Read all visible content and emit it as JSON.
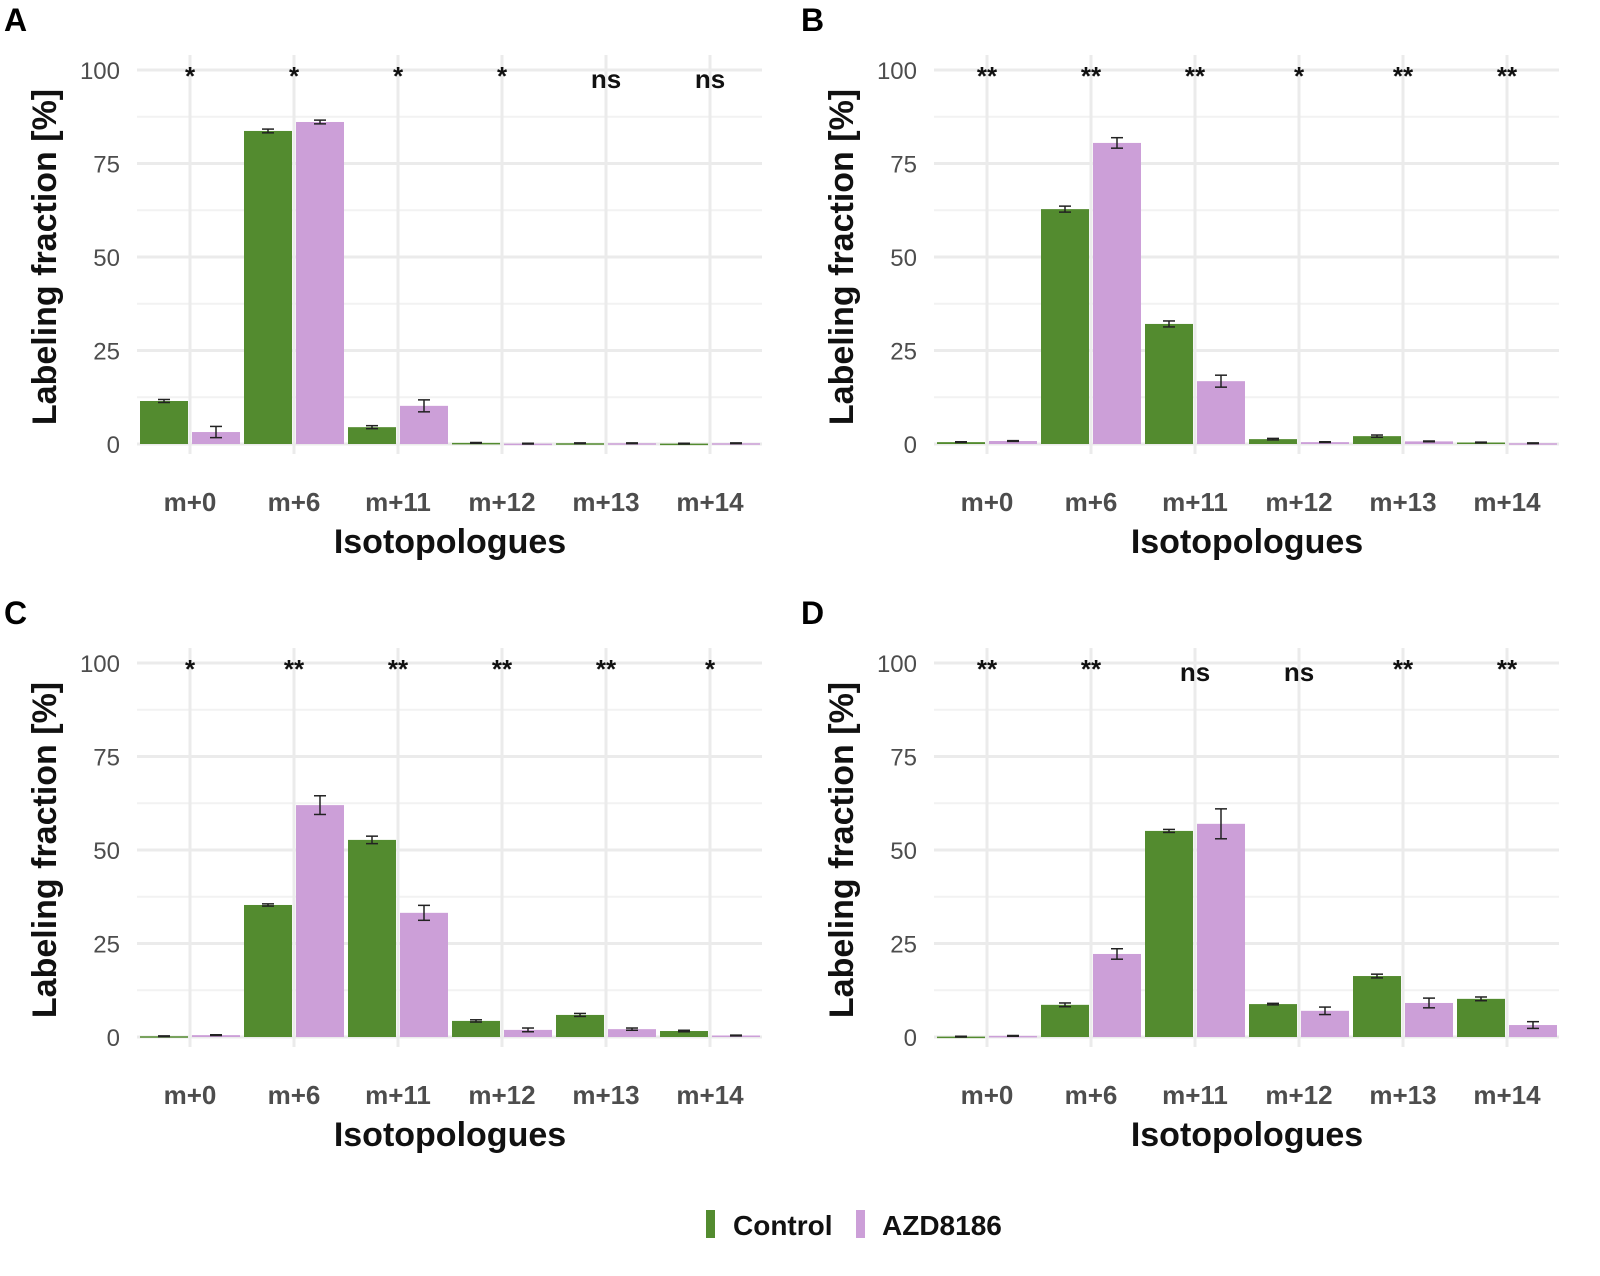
{
  "chart_data": [
    {
      "panel": "A",
      "type": "bar",
      "categories": [
        "m+0",
        "m+6",
        "m+11",
        "m+12",
        "m+13",
        "m+14"
      ],
      "series": [
        {
          "name": "Control",
          "values": [
            11.5,
            83.7,
            4.5,
            0.3,
            0.2,
            0.1
          ],
          "errors": [
            0.4,
            0.5,
            0.4,
            0.1,
            0.1,
            0.1
          ]
        },
        {
          "name": "AZD8186",
          "values": [
            3.2,
            86.1,
            10.2,
            0.1,
            0.2,
            0.2
          ],
          "errors": [
            1.5,
            0.5,
            1.6,
            0.1,
            0.1,
            0.1
          ]
        }
      ],
      "significance": [
        "*",
        "*",
        "*",
        "*",
        "ns",
        "ns"
      ],
      "xlabel": "Isotopologues",
      "ylabel": "Labeling fraction [%]",
      "ylim": [
        0,
        100
      ],
      "yticks": [
        0,
        25,
        50,
        75,
        100
      ]
    },
    {
      "panel": "B",
      "type": "bar",
      "categories": [
        "m+0",
        "m+6",
        "m+11",
        "m+12",
        "m+13",
        "m+14"
      ],
      "series": [
        {
          "name": "Control",
          "values": [
            0.5,
            62.8,
            32.1,
            1.3,
            2.1,
            0.4
          ],
          "errors": [
            0.1,
            0.8,
            0.8,
            0.2,
            0.3,
            0.1
          ]
        },
        {
          "name": "AZD8186",
          "values": [
            0.8,
            80.5,
            16.8,
            0.5,
            0.7,
            0.2
          ],
          "errors": [
            0.1,
            1.4,
            1.6,
            0.1,
            0.1,
            0.1
          ]
        }
      ],
      "significance": [
        "**",
        "**",
        "**",
        "*",
        "**",
        "**"
      ],
      "xlabel": "Isotopologues",
      "ylabel": "Labeling fraction [%]",
      "ylim": [
        0,
        100
      ],
      "yticks": [
        0,
        25,
        50,
        75,
        100
      ]
    },
    {
      "panel": "C",
      "type": "bar",
      "categories": [
        "m+0",
        "m+6",
        "m+11",
        "m+12",
        "m+13",
        "m+14"
      ],
      "series": [
        {
          "name": "Control",
          "values": [
            0.2,
            35.3,
            52.7,
            4.3,
            5.9,
            1.6
          ],
          "errors": [
            0.1,
            0.3,
            1.0,
            0.3,
            0.4,
            0.2
          ]
        },
        {
          "name": "AZD8186",
          "values": [
            0.5,
            62.0,
            33.2,
            1.9,
            2.1,
            0.4
          ],
          "errors": [
            0.1,
            2.5,
            2.0,
            0.5,
            0.3,
            0.1
          ]
        }
      ],
      "significance": [
        "*",
        "**",
        "**",
        "**",
        "**",
        "*"
      ],
      "xlabel": "Isotopologues",
      "ylabel": "Labeling fraction [%]",
      "ylim": [
        0,
        100
      ],
      "yticks": [
        0,
        25,
        50,
        75,
        100
      ]
    },
    {
      "panel": "D",
      "type": "bar",
      "categories": [
        "m+0",
        "m+6",
        "m+11",
        "m+12",
        "m+13",
        "m+14"
      ],
      "series": [
        {
          "name": "Control",
          "values": [
            0.1,
            8.6,
            55.1,
            8.8,
            16.3,
            10.2
          ],
          "errors": [
            0.1,
            0.5,
            0.4,
            0.2,
            0.5,
            0.5
          ]
        },
        {
          "name": "AZD8186",
          "values": [
            0.3,
            22.2,
            57.0,
            7.0,
            9.1,
            3.2
          ],
          "errors": [
            0.1,
            1.4,
            4.0,
            1.0,
            1.3,
            0.9
          ]
        }
      ],
      "significance": [
        "**",
        "**",
        "ns",
        "ns",
        "**",
        "**"
      ],
      "xlabel": "Isotopologues",
      "ylabel": "Labeling fraction [%]",
      "ylim": [
        0,
        100
      ],
      "yticks": [
        0,
        25,
        50,
        75,
        100
      ]
    }
  ],
  "legend": {
    "items": [
      {
        "label": "Control",
        "color": "#538b2f"
      },
      {
        "label": "AZD8186",
        "color": "#cc9fd8"
      }
    ],
    "placement": "bottom"
  }
}
